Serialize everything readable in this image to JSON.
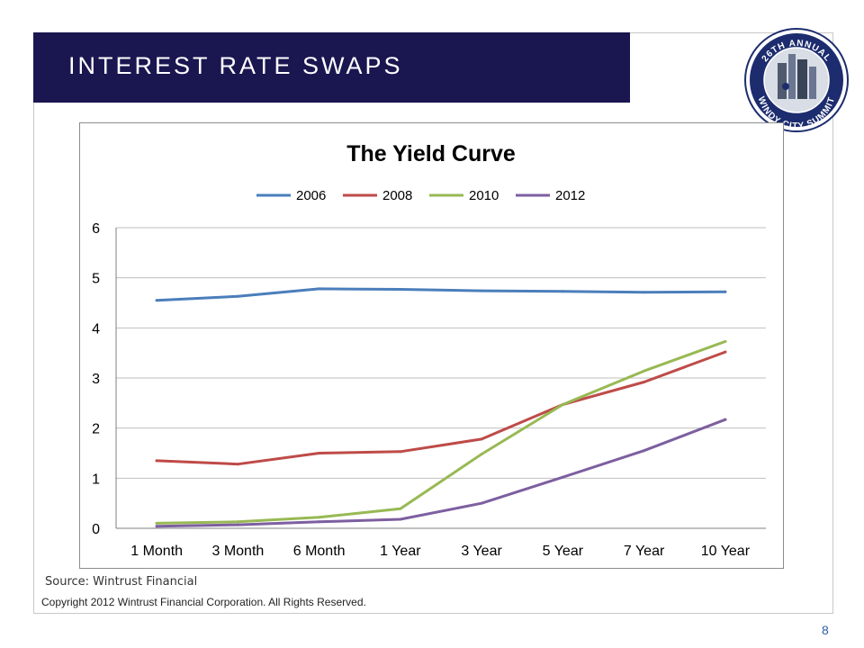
{
  "slide": {
    "title": "INTEREST RATE SWAPS",
    "source": "Source:  Wintrust Financial",
    "copyright": "Copyright 2012 Wintrust Financial Corporation. All Rights Reserved.",
    "page_number": "8"
  },
  "logo": {
    "top_text": "26TH ANNUAL",
    "bottom_text": "WINDY CITY SUMMIT",
    "colors": {
      "ring": "#1c2c6e",
      "inner": "#d8dde6"
    }
  },
  "colors": {
    "banner": "#1a1650",
    "gridline": "#bfbfbf",
    "series": [
      "#4a7ebb",
      "#be4b48",
      "#98b954",
      "#7d5fa0"
    ]
  },
  "chart_data": {
    "type": "line",
    "title": "The Yield Curve",
    "xlabel": "",
    "ylabel": "",
    "categories": [
      "1 Month",
      "3 Month",
      "6 Month",
      "1 Year",
      "3 Year",
      "5 Year",
      "7 Year",
      "10 Year"
    ],
    "ylim": [
      0,
      6
    ],
    "yticks": [
      "0",
      "1",
      "2",
      "3",
      "4",
      "5",
      "6"
    ],
    "grid": true,
    "legend_position": "top",
    "series": [
      {
        "name": "2006",
        "values": [
          4.55,
          4.63,
          4.78,
          4.77,
          4.74,
          4.73,
          4.71,
          4.72
        ]
      },
      {
        "name": "2008",
        "values": [
          1.35,
          1.28,
          1.5,
          1.53,
          1.78,
          2.47,
          2.92,
          3.52
        ]
      },
      {
        "name": "2010",
        "values": [
          0.1,
          0.13,
          0.22,
          0.39,
          1.48,
          2.47,
          3.14,
          3.73
        ]
      },
      {
        "name": "2012",
        "values": [
          0.04,
          0.07,
          0.13,
          0.18,
          0.5,
          1.02,
          1.55,
          2.17
        ]
      }
    ]
  }
}
